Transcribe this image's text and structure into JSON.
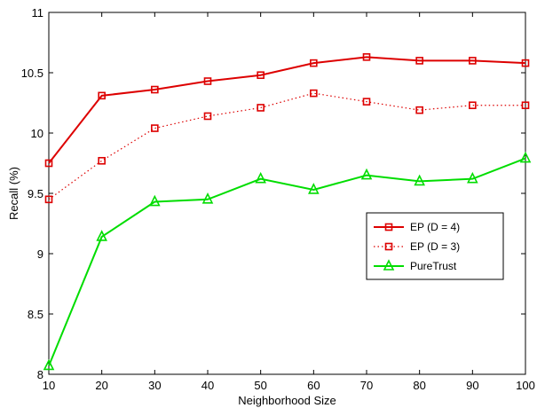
{
  "chart_data": {
    "type": "line",
    "xlabel": "Neighborhood Size",
    "ylabel": "Recall (%)",
    "xlim": [
      10,
      100
    ],
    "ylim": [
      8,
      11
    ],
    "x": [
      10,
      20,
      30,
      40,
      50,
      60,
      70,
      80,
      90,
      100
    ],
    "x_ticks": [
      "10",
      "20",
      "30",
      "40",
      "50",
      "60",
      "70",
      "80",
      "90",
      "100"
    ],
    "y_ticks": [
      "8",
      "8.5",
      "9",
      "9.5",
      "10",
      "10.5",
      "11"
    ],
    "grid": false,
    "legend_position": "right",
    "series": [
      {
        "name": "EP (D = 4)",
        "values": [
          9.75,
          10.31,
          10.36,
          10.43,
          10.48,
          10.58,
          10.63,
          10.6,
          10.6,
          10.58
        ],
        "color": "#dd0000",
        "line_style": "solid",
        "marker": "square"
      },
      {
        "name": "EP (D = 3)",
        "values": [
          9.45,
          9.77,
          10.04,
          10.14,
          10.21,
          10.33,
          10.26,
          10.19,
          10.23,
          10.23
        ],
        "color": "#dd0000",
        "line_style": "dotted",
        "marker": "square"
      },
      {
        "name": "PureTrust",
        "values": [
          8.07,
          9.14,
          9.43,
          9.45,
          9.62,
          9.53,
          9.65,
          9.6,
          9.62,
          9.79
        ],
        "color": "#00dd00",
        "line_style": "solid",
        "marker": "triangle"
      }
    ]
  }
}
